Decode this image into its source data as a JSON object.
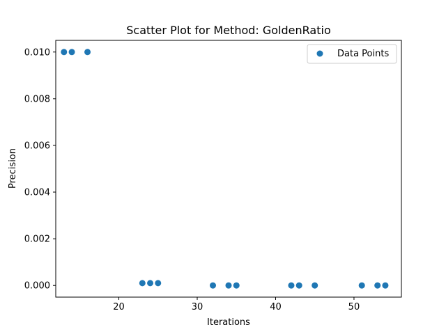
{
  "chart_data": {
    "type": "scatter",
    "title": "Scatter Plot for Method: GoldenRatio",
    "xlabel": "Iterations",
    "ylabel": "Precision",
    "xlim": [
      11.95,
      56.05
    ],
    "ylim": [
      -0.0005,
      0.0105
    ],
    "xticks": [
      20,
      30,
      40,
      50
    ],
    "yticks": [
      0.0,
      0.002,
      0.004,
      0.006,
      0.008,
      0.01
    ],
    "ytick_labels": [
      "0.000",
      "0.002",
      "0.004",
      "0.006",
      "0.008",
      "0.010"
    ],
    "grid": false,
    "legend_position": "top-right",
    "series": [
      {
        "name": "Data Points",
        "color": "#1f77b4",
        "points": [
          {
            "x": 13,
            "y": 0.01
          },
          {
            "x": 14,
            "y": 0.01
          },
          {
            "x": 16,
            "y": 0.01
          },
          {
            "x": 23,
            "y": 0.0001
          },
          {
            "x": 24,
            "y": 0.0001
          },
          {
            "x": 25,
            "y": 0.0001
          },
          {
            "x": 32,
            "y": 0.0
          },
          {
            "x": 34,
            "y": 0.0
          },
          {
            "x": 35,
            "y": 0.0
          },
          {
            "x": 42,
            "y": 0.0
          },
          {
            "x": 43,
            "y": 0.0
          },
          {
            "x": 45,
            "y": 0.0
          },
          {
            "x": 51,
            "y": 0.0
          },
          {
            "x": 53,
            "y": 0.0
          },
          {
            "x": 54,
            "y": 0.0
          }
        ]
      }
    ]
  }
}
